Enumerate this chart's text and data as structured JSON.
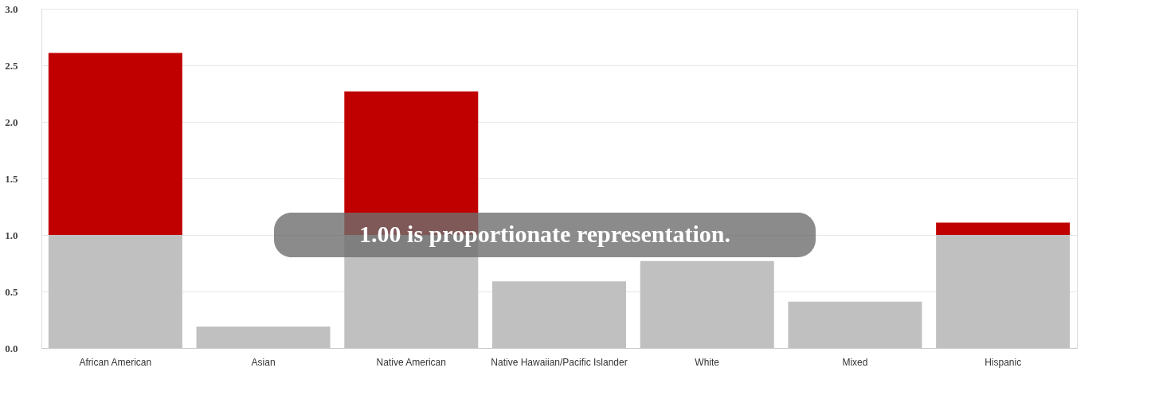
{
  "chart_data": {
    "type": "bar",
    "stacked": true,
    "categories": [
      "African American",
      "Asian",
      "Native American",
      "Native Hawaiian/Pacific Islander",
      "White",
      "Mixed",
      "Hispanic"
    ],
    "series": [
      {
        "color": "#c0c0c0",
        "values": [
          1.0,
          0.19,
          1.0,
          0.59,
          0.77,
          0.41,
          1.0
        ]
      },
      {
        "color": "#c00000",
        "values": [
          1.61,
          null,
          1.27,
          null,
          null,
          null,
          0.11
        ]
      }
    ],
    "ylim": [
      0,
      3
    ],
    "yticks": [
      {
        "value": 0,
        "label": "0.0"
      },
      {
        "value": 0.5,
        "label": "0.5"
      },
      {
        "value": 1,
        "label": "1.0"
      },
      {
        "value": 1.5,
        "label": "1.5"
      },
      {
        "value": 2,
        "label": "2.0"
      },
      {
        "value": 2.5,
        "label": "2.5"
      },
      {
        "value": 3,
        "label": "3.0"
      }
    ],
    "grid": "y",
    "annotations": [
      "1.00 is proportionate representation."
    ]
  }
}
